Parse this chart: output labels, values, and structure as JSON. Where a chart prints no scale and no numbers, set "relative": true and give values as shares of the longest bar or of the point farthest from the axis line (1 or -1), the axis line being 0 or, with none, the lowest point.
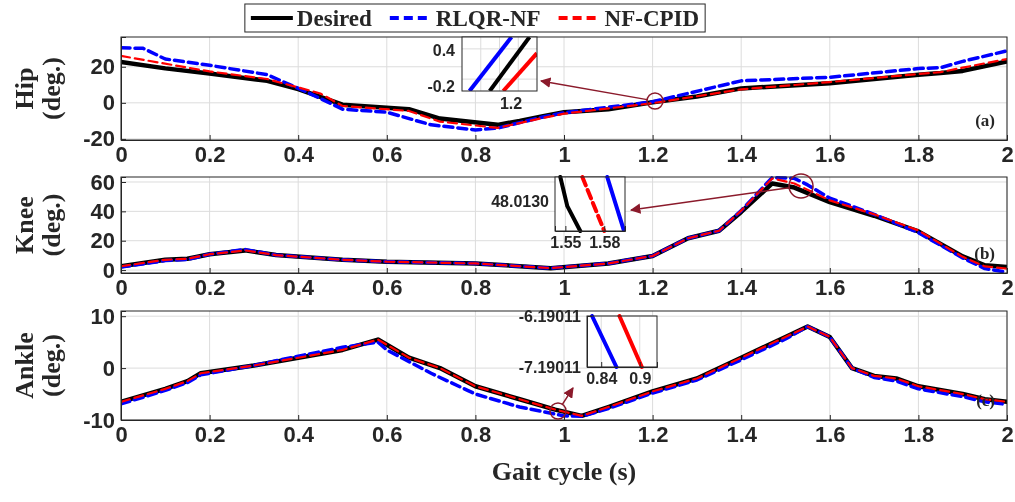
{
  "chart_data": [
    {
      "type": "line",
      "ylabel": "Hip (deg.)",
      "xlim": [
        0,
        2
      ],
      "xticks": [
        0,
        0.2,
        0.4,
        0.6,
        0.8,
        1,
        1.2,
        1.4,
        1.6,
        1.8,
        2
      ],
      "ylim": [
        -20.6,
        36.5
      ],
      "yticks": [
        -20,
        0,
        20
      ],
      "grid": true,
      "legend": "top",
      "annotations": [
        "(a)",
        "0.4",
        "-0.2",
        "1.2"
      ],
      "series": [
        {
          "name": "Desired",
          "color": "#000000",
          "line_style": "solid",
          "x": [
            0,
            0.1,
            0.2,
            0.33,
            0.4,
            0.5,
            0.65,
            0.72,
            0.85,
            0.9,
            0.95,
            1,
            1.1,
            1.2,
            1.3,
            1.4,
            1.6,
            1.8,
            1.85,
            1.9,
            2
          ],
          "values": [
            22.6,
            19.1,
            16.3,
            12.2,
            7.6,
            -1,
            -3.5,
            -8.7,
            -12.2,
            -10,
            -7.5,
            -5.2,
            -3.5,
            0.3,
            3.5,
            8,
            10.8,
            15.6,
            16.5,
            17.7,
            22.9
          ]
        },
        {
          "name": "RLQR-NF",
          "color": "#0000ff",
          "line_style": "dashed",
          "x": [
            0,
            0.05,
            0.1,
            0.2,
            0.33,
            0.42,
            0.5,
            0.6,
            0.7,
            0.8,
            0.85,
            0.95,
            1,
            1.2,
            1.4,
            1.6,
            1.8,
            1.85,
            1.9,
            2
          ],
          "values": [
            30.5,
            30.2,
            24.3,
            20.8,
            15.6,
            5.9,
            -3.5,
            -5.2,
            -12.2,
            -15,
            -14,
            -8,
            -5.5,
            0.6,
            12.2,
            14.2,
            19,
            19.5,
            23,
            28.8
          ]
        },
        {
          "name": "NF-CPID",
          "color": "#ff0000",
          "line_style": "dashed",
          "x": [
            0,
            0.2,
            0.33,
            0.45,
            0.5,
            0.65,
            0.72,
            0.85,
            0.95,
            1,
            1.2,
            1.4,
            1.6,
            1.8,
            1.85,
            1.9,
            2
          ],
          "values": [
            26,
            17.4,
            13.2,
            5.2,
            -1.7,
            -4.5,
            -10.4,
            -13.9,
            -8.5,
            -6,
            -0.2,
            7.5,
            11.5,
            16,
            17,
            19.5,
            24.3
          ]
        }
      ]
    },
    {
      "type": "line",
      "ylabel": "Knee (deg.)",
      "xlim": [
        0,
        2
      ],
      "xticks": [
        0,
        0.2,
        0.4,
        0.6,
        0.8,
        1,
        1.2,
        1.4,
        1.6,
        1.8,
        2
      ],
      "ylim": [
        -2,
        63.4
      ],
      "yticks": [
        0,
        20,
        40,
        60
      ],
      "grid": true,
      "annotations": [
        "(b)"
      ],
      "series": [
        {
          "color": "#000000",
          "line_style": "solid",
          "x": [
            0,
            0.1,
            0.15,
            0.2,
            0.28,
            0.35,
            0.5,
            0.6,
            0.8,
            0.97,
            1.1,
            1.2,
            1.28,
            1.35,
            1.4,
            1.47,
            1.52,
            1.6,
            1.7,
            1.8,
            1.9,
            1.95,
            2
          ],
          "values": [
            2.6,
            7,
            7.7,
            10.8,
            13.4,
            10.2,
            7,
            5.7,
            4.5,
            1.3,
            4.5,
            9.6,
            21.7,
            26.8,
            39.6,
            59,
            56.2,
            46.3,
            37,
            26.3,
            9.3,
            3.2,
            2
          ]
        },
        {
          "color": "#0000ff",
          "line_style": "dashed",
          "x": [
            0,
            0.1,
            0.15,
            0.2,
            0.28,
            0.35,
            0.5,
            0.6,
            0.8,
            0.97,
            1.1,
            1.2,
            1.28,
            1.35,
            1.4,
            1.47,
            1.52,
            1.55,
            1.6,
            1.7,
            1.8,
            1.9,
            1.95,
            2
          ],
          "values": [
            2,
            6.5,
            7.2,
            10.8,
            14,
            10.2,
            7,
            5.7,
            4.5,
            1.3,
            4.5,
            9.6,
            21.7,
            26.8,
            40.5,
            63,
            62.5,
            58,
            49,
            38,
            25.5,
            8.3,
            1,
            -1.5
          ]
        },
        {
          "color": "#ff0000",
          "line_style": "dashed",
          "x": [
            0,
            0.1,
            0.15,
            0.2,
            0.28,
            0.35,
            0.5,
            0.6,
            0.8,
            0.97,
            1.1,
            1.2,
            1.28,
            1.35,
            1.4,
            1.47,
            1.52,
            1.6,
            1.7,
            1.8,
            1.9,
            1.95,
            2
          ],
          "values": [
            2.6,
            7,
            7.7,
            10.8,
            13.4,
            10.2,
            7,
            5.7,
            4.5,
            1.3,
            4.5,
            9.6,
            21.7,
            26.8,
            40.5,
            62.4,
            59,
            47.5,
            38,
            27,
            9,
            2.5,
            1
          ]
        }
      ]
    },
    {
      "type": "line",
      "ylabel": "Ankle (deg.)",
      "xlabel": "Gait cycle (s)",
      "xlim": [
        0,
        2
      ],
      "xticks": [
        0,
        0.2,
        0.4,
        0.6,
        0.8,
        1,
        1.2,
        1.4,
        1.6,
        1.8,
        2
      ],
      "ylim": [
        -10,
        11
      ],
      "yticks": [
        -10,
        0,
        10
      ],
      "grid": true,
      "annotations": [
        "(c)"
      ],
      "series": [
        {
          "color": "#000000",
          "line_style": "solid",
          "x": [
            0,
            0.1,
            0.15,
            0.18,
            0.3,
            0.4,
            0.5,
            0.58,
            0.65,
            0.72,
            0.8,
            0.9,
            0.98,
            1.04,
            1.1,
            1.2,
            1.3,
            1.4,
            1.5,
            1.55,
            1.6,
            1.65,
            1.7,
            1.75,
            1.8,
            1.9,
            1.95,
            2
          ],
          "values": [
            -6.5,
            -4,
            -2.5,
            -1,
            0.5,
            2,
            3.5,
            5.5,
            2,
            0,
            -3.5,
            -6,
            -8,
            -9.2,
            -7.5,
            -4.5,
            -2,
            2,
            6,
            8,
            6,
            0,
            -1.5,
            -2,
            -3.5,
            -5,
            -6,
            -6.5
          ]
        },
        {
          "color": "#0000ff",
          "line_style": "dashed",
          "x": [
            0,
            0.1,
            0.15,
            0.18,
            0.3,
            0.4,
            0.5,
            0.58,
            0.6,
            0.7,
            0.8,
            0.9,
            1,
            1.04,
            1.1,
            1.2,
            1.3,
            1.4,
            1.5,
            1.55,
            1.6,
            1.65,
            1.7,
            1.75,
            1.8,
            1.9,
            1.95,
            2
          ],
          "values": [
            -6.9,
            -4.3,
            -2.8,
            -1.3,
            0.5,
            2.3,
            4,
            5,
            3.5,
            -1,
            -5,
            -7.5,
            -9.2,
            -9.3,
            -7.8,
            -4.8,
            -2.3,
            1.6,
            5.6,
            8,
            6,
            0,
            -1.8,
            -2.5,
            -4,
            -5.5,
            -6.5,
            -7
          ]
        },
        {
          "color": "#ff0000",
          "line_style": "dashed",
          "x": [
            0,
            0.1,
            0.15,
            0.18,
            0.3,
            0.4,
            0.5,
            0.58,
            0.65,
            0.72,
            0.8,
            0.9,
            0.98,
            1.04,
            1.1,
            1.2,
            1.3,
            1.4,
            1.5,
            1.55,
            1.6,
            1.65,
            1.7,
            1.75,
            1.8,
            1.9,
            1.95,
            2
          ],
          "values": [
            -6.5,
            -4,
            -2.5,
            -1,
            0.5,
            2,
            3.5,
            5.5,
            2,
            0,
            -3.5,
            -6,
            -8,
            -9.2,
            -7.5,
            -4.5,
            -2,
            2,
            6,
            8,
            6,
            0,
            -1.5,
            -2,
            -3.5,
            -5,
            -6,
            -6.5
          ]
        }
      ]
    },
    {
      "type": "line",
      "relative": true,
      "xlim": [
        1.542,
        1.596
      ],
      "xticks": [
        1.55,
        1.58
      ],
      "grid": true,
      "annotations": [
        "48.0130"
      ],
      "series": [
        {
          "color": "#000000",
          "line_style": "solid",
          "x": [
            1.5461,
            1.5515,
            1.5615
          ],
          "values": [
            1,
            0.46,
            0
          ]
        },
        {
          "color": "#ff0000",
          "line_style": "dashed",
          "x": [
            1.5631,
            1.58
          ],
          "values": [
            1,
            0
          ]
        },
        {
          "color": "#0000ff",
          "line_style": "solid",
          "x": [
            1.5823,
            1.595
          ],
          "values": [
            1,
            0.02
          ]
        }
      ]
    },
    {
      "type": "line",
      "xlim": [
        0.8179,
        0.9268
      ],
      "xticks": [
        0.84,
        0.9
      ],
      "ylim": [
        -7.19011,
        -6.19011
      ],
      "yticks": [
        -7.19011,
        -6.19011
      ],
      "grid": true,
      "series": [
        {
          "color": "#0000ff",
          "line_style": "solid",
          "x": [
            0.8258,
            0.8637
          ],
          "values": [
            -6.19011,
            -7.19011
          ]
        },
        {
          "color": "#ff0000",
          "line_style": "solid",
          "x": [
            0.8684,
            0.9032
          ],
          "values": [
            -6.19011,
            -7.19011
          ]
        }
      ]
    }
  ]
}
